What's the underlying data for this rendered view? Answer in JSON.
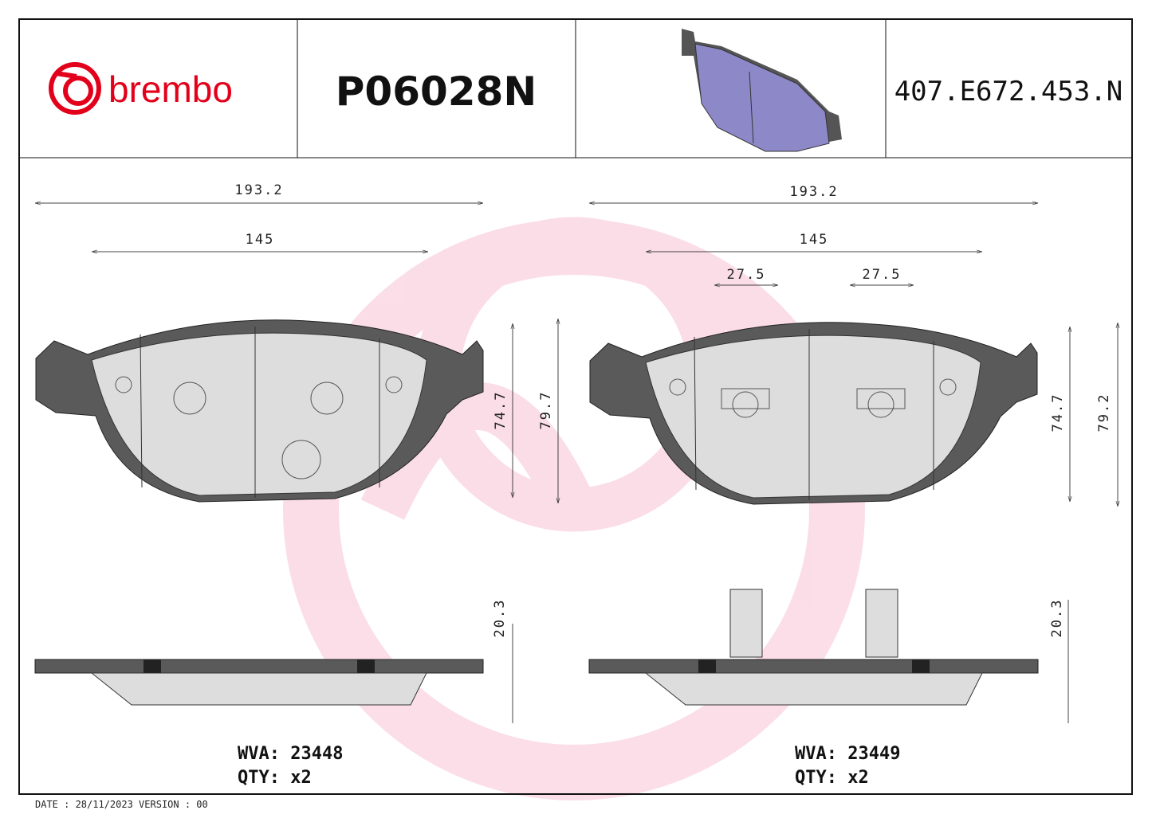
{
  "header": {
    "brand": "brembo",
    "part_number": "P06028N",
    "code": "407.E672.453.N"
  },
  "left": {
    "width_total": "193.2",
    "width_inner": "145",
    "height_inner": "74.7",
    "height_total": "79.7",
    "thickness": "20.3",
    "wva": "WVA: 23448",
    "qty": "QTY: x2"
  },
  "right": {
    "width_total": "193.2",
    "width_inner": "145",
    "slot_a": "27.5",
    "slot_b": "27.5",
    "height_inner": "74.7",
    "height_total": "79.2",
    "thickness": "20.3",
    "wva": "WVA: 23449",
    "qty": "QTY: x2"
  },
  "footer": {
    "date": "DATE : 28/11/2023 VERSION : 00"
  }
}
